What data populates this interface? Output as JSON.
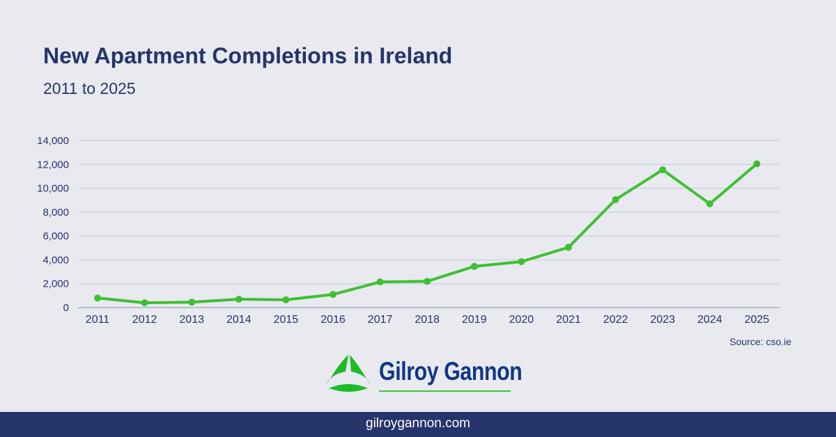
{
  "chart_data": {
    "type": "line",
    "title": "New Apartment Completions in Ireland",
    "subtitle": "2011 to 2025",
    "categories": [
      "2011",
      "2012",
      "2013",
      "2014",
      "2015",
      "2016",
      "2017",
      "2018",
      "2019",
      "2020",
      "2021",
      "2022",
      "2023",
      "2024",
      "2025"
    ],
    "series": [
      {
        "values": [
          800,
          400,
          450,
          700,
          650,
          1100,
          2150,
          2200,
          3450,
          3850,
          5050,
          9050,
          11550,
          8700,
          12050
        ],
        "color": "#3fbf34"
      }
    ],
    "ylim": [
      0,
      14000
    ],
    "yticks": [
      "0",
      "2,000",
      "4,000",
      "6,000",
      "8,000",
      "10,000",
      "12,000",
      "14,000"
    ],
    "grid": true,
    "source": "Source: cso.ie"
  },
  "brand": {
    "name": "Gilroy Gannon",
    "website": "gilroygannon.com"
  }
}
